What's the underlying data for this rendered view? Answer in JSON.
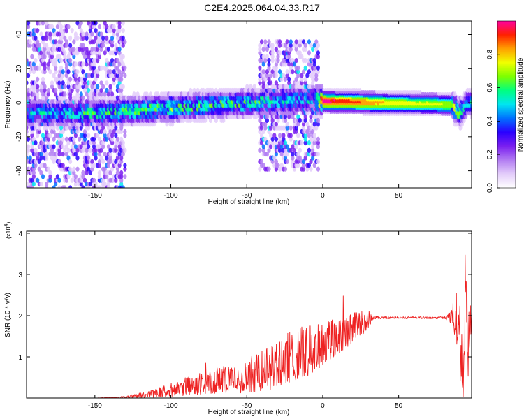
{
  "title": "C2E4.2025.064.04.33.R17",
  "chart_data": [
    {
      "type": "heatmap",
      "xlabel": "Height of straight line (km)",
      "ylabel": "Frequency (Hz)",
      "xlim": [
        -195,
        98
      ],
      "ylim": [
        -50,
        48
      ],
      "xticks": [
        -150,
        -100,
        -50,
        0,
        50
      ],
      "yticks": [
        -40,
        -20,
        0,
        20,
        40
      ],
      "colorbar": {
        "label": "Normalized spectral amplitude",
        "range": [
          0,
          1
        ],
        "ticks": [
          "0.0",
          "0.2",
          "0.4",
          "0.6",
          "0.8"
        ],
        "colors": [
          "#ffffff",
          "#e3cdfa",
          "#b27cf2",
          "#7a1ff0",
          "#2a00ff",
          "#0070ff",
          "#00e6f0",
          "#00ff80",
          "#7dff00",
          "#f0ff00",
          "#ffa000",
          "#ff2000",
          "#ff00a0"
        ]
      },
      "band_center": [
        {
          "x": -190,
          "f": -6
        },
        {
          "x": -150,
          "f": -6
        },
        {
          "x": -100,
          "f": -3
        },
        {
          "x": -50,
          "f": 0
        },
        {
          "x": -5,
          "f": 2
        },
        {
          "x": 0,
          "f": 1
        },
        {
          "x": 85,
          "f": -1
        },
        {
          "x": 90,
          "f": -6
        },
        {
          "x": 96,
          "f": 0
        }
      ],
      "band_peak_amplitude": [
        {
          "x": -190,
          "a": 0.45
        },
        {
          "x": -150,
          "a": 0.55
        },
        {
          "x": -100,
          "a": 0.6
        },
        {
          "x": -50,
          "a": 0.55
        },
        {
          "x": -5,
          "a": 0.45
        },
        {
          "x": 0,
          "a": 1.0
        },
        {
          "x": 50,
          "a": 0.75
        },
        {
          "x": 85,
          "a": 0.7
        },
        {
          "x": 96,
          "a": 0.5
        }
      ],
      "noisy_regions": [
        {
          "x_from": -195,
          "x_to": -130,
          "f_from": -50,
          "f_to": 48
        },
        {
          "x_from": -42,
          "x_to": -3,
          "f_from": -40,
          "f_to": 36
        }
      ]
    },
    {
      "type": "line",
      "xlabel": "Height of straight line (km)",
      "ylabel": "SNR (10 * v/v)",
      "y_multiplier": "(x10",
      "y_multiplier_exp": "4",
      "xlim": [
        -195,
        98
      ],
      "ylim": [
        0,
        4.05
      ],
      "xticks": [
        -150,
        -100,
        -50,
        0,
        50
      ],
      "yticks": [
        1,
        2,
        3,
        4
      ],
      "color": "#ee2222",
      "series": [
        {
          "x": [
            -195,
            -150,
            -130,
            -120,
            -110,
            -100,
            -90,
            -80,
            -70,
            -60,
            -50,
            -40,
            -30,
            -20,
            -15,
            -10,
            -5,
            0,
            5,
            10,
            15,
            20,
            25,
            30,
            33,
            40,
            50,
            60,
            70,
            80,
            85,
            88,
            90,
            92,
            94,
            96,
            98
          ],
          "y": [
            0.0,
            0.0,
            0.02,
            0.06,
            0.12,
            0.2,
            0.28,
            0.35,
            0.42,
            0.45,
            0.5,
            0.65,
            0.8,
            1.0,
            1.1,
            1.15,
            1.2,
            1.3,
            1.4,
            1.5,
            1.6,
            1.7,
            1.8,
            1.9,
            1.95,
            1.95,
            1.95,
            1.95,
            1.95,
            1.95,
            1.95,
            2.1,
            1.6,
            0.5,
            2.6,
            1.2,
            1.9
          ],
          "spread": [
            0,
            0,
            0.03,
            0.08,
            0.12,
            0.18,
            0.25,
            0.3,
            0.35,
            0.4,
            0.45,
            0.55,
            0.65,
            0.75,
            0.7,
            0.7,
            0.65,
            0.6,
            0.55,
            0.5,
            0.45,
            0.4,
            0.35,
            0.25,
            0.05,
            0.03,
            0.03,
            0.03,
            0.03,
            0.03,
            0.2,
            0.8,
            1.0,
            1.2,
            1.4,
            1.0,
            0.5
          ]
        }
      ]
    }
  ]
}
